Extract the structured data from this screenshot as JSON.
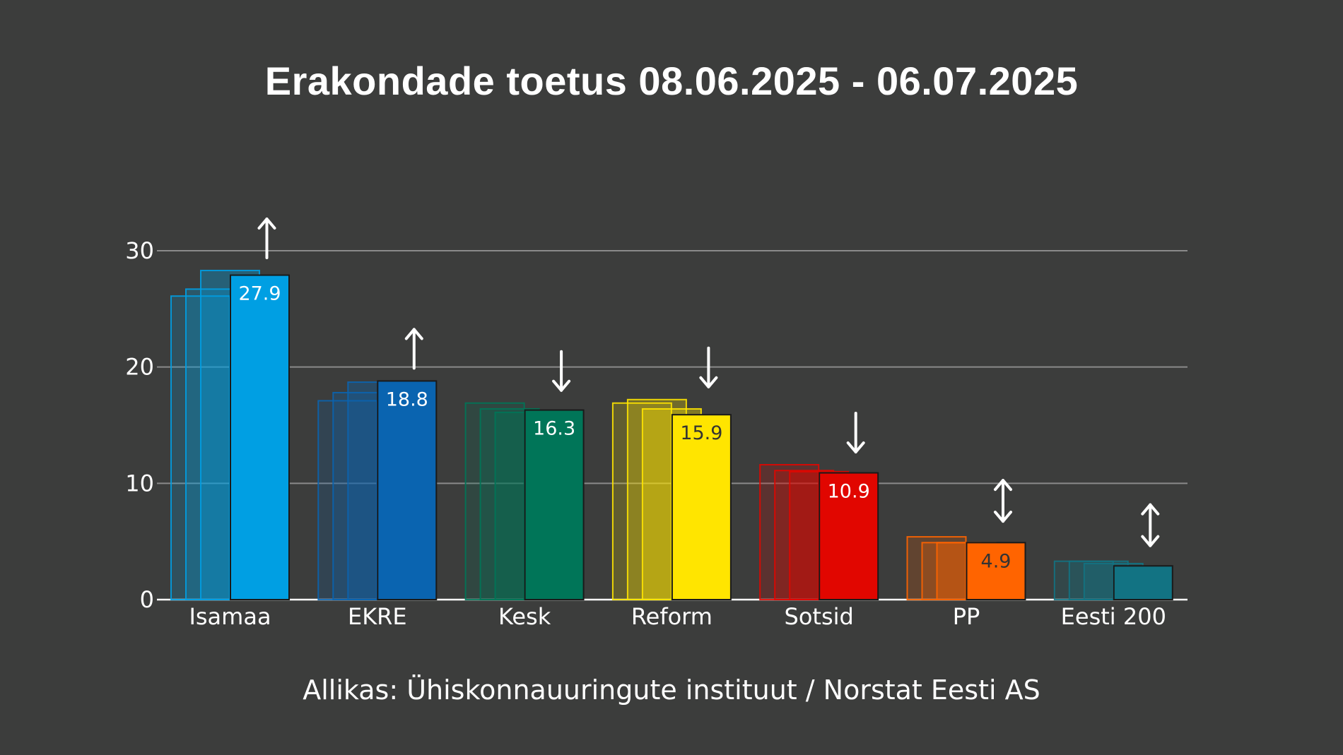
{
  "chart_data": {
    "type": "bar",
    "title": "Erakondade toetus 08.06.2025 - 06.07.2025",
    "source": "Allikas: Ühiskonnauuringute instituut / Norstat Eesti AS",
    "xlabel": "",
    "ylabel": "",
    "ylim": [
      0,
      30
    ],
    "yticks": [
      "0",
      "10",
      "20",
      "30"
    ],
    "grid": true,
    "categories": [
      "Isamaa",
      "EKRE",
      "Kesk",
      "Reform",
      "Sotsid",
      "PP",
      "Eesti 200"
    ],
    "series": [
      {
        "values": [
          26.1,
          17.1,
          16.9,
          16.9,
          11.6,
          5.4,
          3.3
        ]
      },
      {
        "values": [
          26.7,
          17.8,
          16.4,
          17.2,
          11.1,
          4.9,
          3.3
        ]
      },
      {
        "values": [
          28.3,
          18.7,
          16.1,
          16.4,
          11.0,
          4.9,
          3.1
        ]
      },
      {
        "values": [
          27.9,
          18.8,
          16.3,
          15.9,
          10.9,
          4.9,
          2.9
        ]
      }
    ],
    "data_labels": [
      "27.9",
      "18.8",
      "16.3",
      "15.9",
      "10.9",
      "4.9",
      ""
    ],
    "trend_arrows": [
      "up",
      "up",
      "down",
      "down",
      "down",
      "both",
      "both"
    ],
    "colors": [
      "#009fe3",
      "#0a64b0",
      "#007558",
      "#ffe500",
      "#e10600",
      "#ff6400",
      "#127383"
    ],
    "label_colors": [
      "#ffffff",
      "#ffffff",
      "#ffffff",
      "#333333",
      "#ffffff",
      "#333333",
      "#ffffff"
    ]
  }
}
